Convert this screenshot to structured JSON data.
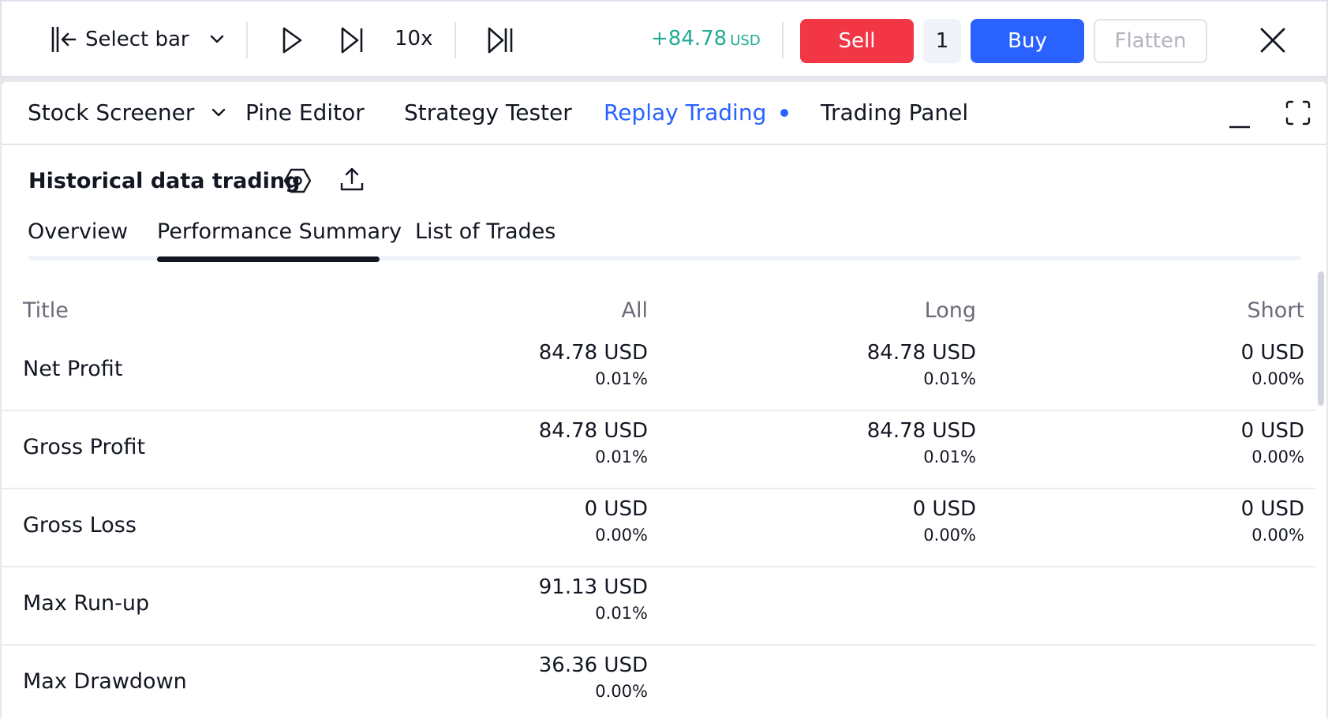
{
  "toolbar": {
    "select_bar_label": "Select bar",
    "speed_label": "10x",
    "pnl_value": "+84.78",
    "pnl_currency": "USD",
    "sell_label": "Sell",
    "quantity": "1",
    "buy_label": "Buy",
    "flatten_label": "Flatten"
  },
  "bottom_tabs": [
    {
      "label": "Stock Screener"
    },
    {
      "label": "Pine Editor"
    },
    {
      "label": "Strategy Tester"
    },
    {
      "label": "Replay Trading",
      "active": true
    },
    {
      "label": "Trading Panel"
    }
  ],
  "section": {
    "title": "Historical data trading"
  },
  "tabs": [
    {
      "label": "Overview"
    },
    {
      "label": "Performance Summary",
      "active": true
    },
    {
      "label": "List of Trades"
    }
  ],
  "table": {
    "headers": {
      "title": "Title",
      "all": "All",
      "long": "Long",
      "short": "Short"
    },
    "rows": [
      {
        "title": "Net Profit",
        "all": {
          "value": "84.78 USD",
          "pct": "0.01%"
        },
        "long": {
          "value": "84.78 USD",
          "pct": "0.01%"
        },
        "short": {
          "value": "0 USD",
          "pct": "0.00%"
        }
      },
      {
        "title": "Gross Profit",
        "all": {
          "value": "84.78 USD",
          "pct": "0.01%"
        },
        "long": {
          "value": "84.78 USD",
          "pct": "0.01%"
        },
        "short": {
          "value": "0 USD",
          "pct": "0.00%"
        }
      },
      {
        "title": "Gross Loss",
        "all": {
          "value": "0 USD",
          "pct": "0.00%"
        },
        "long": {
          "value": "0 USD",
          "pct": "0.00%"
        },
        "short": {
          "value": "0 USD",
          "pct": "0.00%"
        }
      },
      {
        "title": "Max Run-up",
        "all": {
          "value": "91.13 USD",
          "pct": "0.01%"
        }
      },
      {
        "title": "Max Drawdown",
        "all": {
          "value": "36.36 USD",
          "pct": "0.00%"
        }
      }
    ]
  },
  "colors": {
    "accent": "#2962ff",
    "sell": "#f23645",
    "profit": "#22ab94"
  }
}
